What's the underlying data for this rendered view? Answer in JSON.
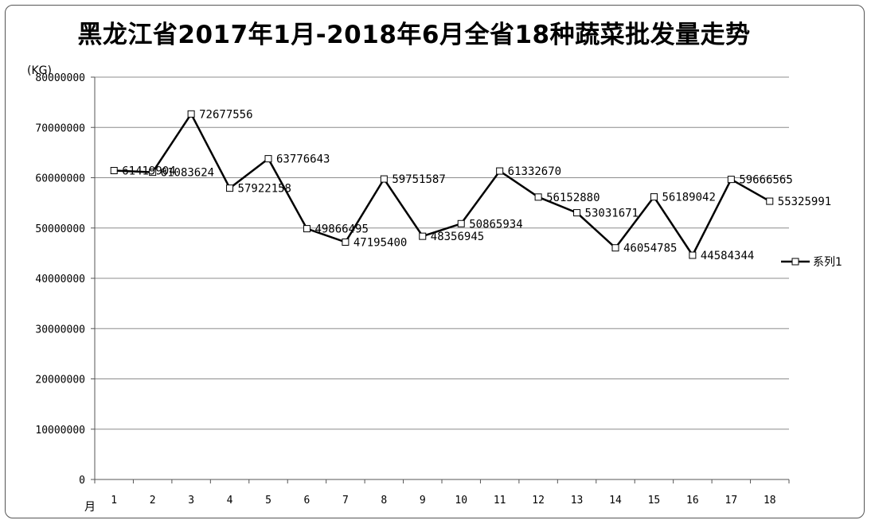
{
  "chart_data": {
    "type": "line",
    "title": "黑龙江省2017年1月-2018年6月全省18种蔬菜批发量走势",
    "ylabel": "(KG)",
    "xlabel": "月",
    "categories": [
      "1",
      "2",
      "3",
      "4",
      "5",
      "6",
      "7",
      "8",
      "9",
      "10",
      "11",
      "12",
      "13",
      "14",
      "15",
      "16",
      "17",
      "18"
    ],
    "ylim": [
      0,
      80000000
    ],
    "yticks": [
      "0",
      "10000000",
      "20000000",
      "30000000",
      "40000000",
      "50000000",
      "60000000",
      "70000000",
      "80000000"
    ],
    "grid": true,
    "legend_position": "right",
    "series": [
      {
        "name": "系列1",
        "color": "#000000",
        "values": [
          61419904,
          61083624,
          72677556,
          57922158,
          63776643,
          49866495,
          47195400,
          59751587,
          48356945,
          50865934,
          61332670,
          56152880,
          53031671,
          46054785,
          56189042,
          44584344,
          59666565,
          55325991
        ],
        "labels": [
          "61419904",
          "61083624",
          "72677556",
          "57922158",
          "63776643",
          "49866495",
          "47195400",
          "59751587",
          "48356945",
          "50865934",
          "61332670",
          "56152880",
          "53031671",
          "46054785",
          "56189042",
          "44584344",
          "59666565",
          "55325991"
        ]
      }
    ]
  }
}
